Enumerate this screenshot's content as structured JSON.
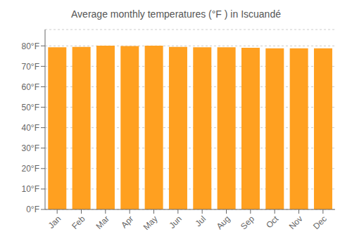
{
  "chart_data": {
    "type": "bar",
    "title": "Average monthly temperatures (°F ) in Iscuandé",
    "categories": [
      "Jan",
      "Feb",
      "Mar",
      "Apr",
      "May",
      "Jun",
      "Jul",
      "Aug",
      "Sep",
      "Oct",
      "Nov",
      "Dec"
    ],
    "values": [
      79.3,
      79.5,
      80.1,
      79.9,
      80.1,
      79.5,
      79.3,
      79.3,
      79.1,
      78.8,
      78.8,
      78.8
    ],
    "color": "#FFA020",
    "ylim": [
      0,
      88
    ],
    "yticks": [
      {
        "value": 0,
        "label": "0°F"
      },
      {
        "value": 10,
        "label": "10°F"
      },
      {
        "value": 20,
        "label": "20°F"
      },
      {
        "value": 30,
        "label": "30°F"
      },
      {
        "value": 40,
        "label": "40°F"
      },
      {
        "value": 50,
        "label": "50°F"
      },
      {
        "value": 60,
        "label": "60°F"
      },
      {
        "value": 70,
        "label": "70°F"
      },
      {
        "value": 80,
        "label": "80°F"
      }
    ],
    "grid": true
  }
}
